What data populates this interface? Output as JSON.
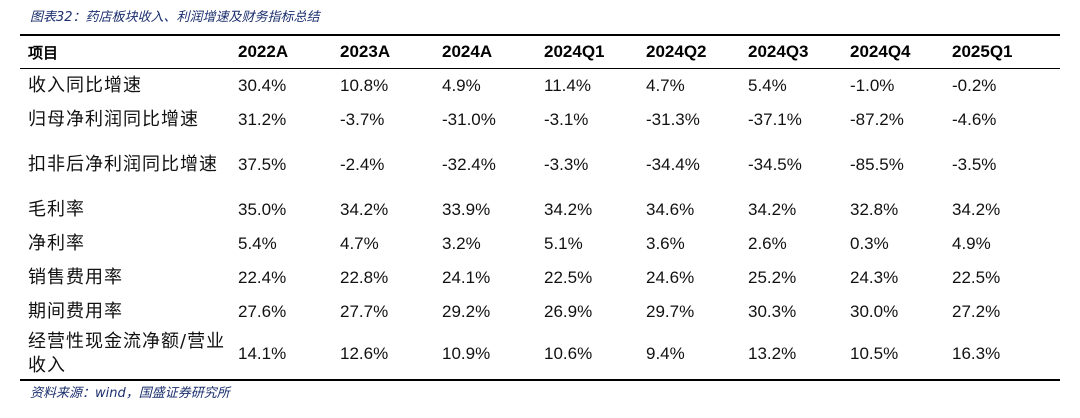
{
  "caption": "图表32：药店板块收入、利润增速及财务指标总结",
  "source": "资料来源：wind，国盛证券研究所",
  "table": {
    "header_label": "项目",
    "columns": [
      "2022A",
      "2023A",
      "2024A",
      "2024Q1",
      "2024Q2",
      "2024Q3",
      "2024Q4",
      "2025Q1"
    ],
    "rows": [
      {
        "label": "收入同比增速",
        "values": [
          "30.4%",
          "10.8%",
          "4.9%",
          "11.4%",
          "4.7%",
          "5.4%",
          "-1.0%",
          "-0.2%"
        ]
      },
      {
        "label": "归母净利润同比增速",
        "values": [
          "31.2%",
          "-3.7%",
          "-31.0%",
          "-3.1%",
          "-31.3%",
          "-37.1%",
          "-87.2%",
          "-4.6%"
        ]
      },
      {
        "label": "扣非后净利润同比增速",
        "values": [
          "37.5%",
          "-2.4%",
          "-32.4%",
          "-3.3%",
          "-34.4%",
          "-34.5%",
          "-85.5%",
          "-3.5%"
        ]
      },
      {
        "label": "毛利率",
        "values": [
          "35.0%",
          "34.2%",
          "33.9%",
          "34.2%",
          "34.6%",
          "34.2%",
          "32.8%",
          "34.2%"
        ]
      },
      {
        "label": "净利率",
        "values": [
          "5.4%",
          "4.7%",
          "3.2%",
          "5.1%",
          "3.6%",
          "2.6%",
          "0.3%",
          "4.9%"
        ]
      },
      {
        "label": "销售费用率",
        "values": [
          "22.4%",
          "22.8%",
          "24.1%",
          "22.5%",
          "24.6%",
          "25.2%",
          "24.3%",
          "22.5%"
        ]
      },
      {
        "label": "期间费用率",
        "values": [
          "27.6%",
          "27.7%",
          "29.2%",
          "26.9%",
          "29.7%",
          "30.3%",
          "30.0%",
          "27.2%"
        ]
      },
      {
        "label": "经营性现金流净额/营业收入",
        "values": [
          "14.1%",
          "12.6%",
          "10.9%",
          "10.6%",
          "9.4%",
          "13.2%",
          "10.5%",
          "16.3%"
        ]
      }
    ]
  }
}
